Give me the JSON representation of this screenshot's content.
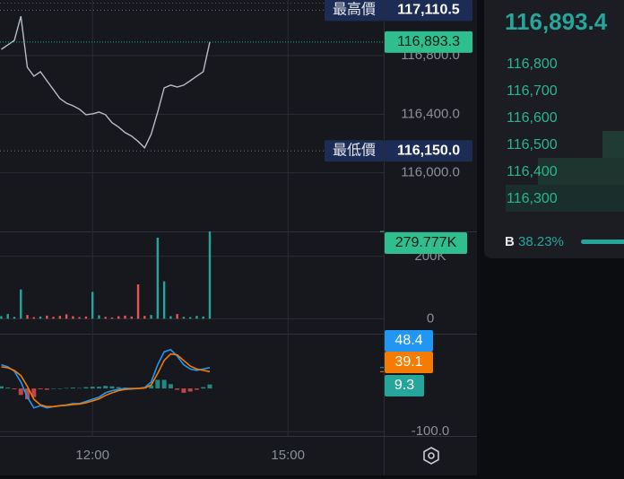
{
  "price_panel": {
    "type": "line",
    "color": "#b8bcc6",
    "x": [
      10.6,
      10.7,
      10.8,
      10.9,
      11.0,
      11.1,
      11.2,
      11.3,
      11.4,
      11.5,
      11.6,
      11.7,
      11.8,
      11.9,
      12.0,
      12.1,
      12.2,
      12.3,
      12.4,
      12.5,
      12.6,
      12.7,
      12.8,
      12.9,
      13.0,
      13.1,
      13.2,
      13.3,
      13.4,
      13.5,
      13.6,
      13.7,
      13.8
    ],
    "values": [
      116843,
      116873,
      116904,
      117069,
      116721,
      116660,
      116690,
      116629,
      116568,
      116507,
      116476,
      116458,
      116434,
      116397,
      116403,
      116415,
      116397,
      116342,
      116312,
      116275,
      116251,
      116214,
      116171,
      116263,
      116415,
      116580,
      116599,
      116586,
      116599,
      116629,
      116660,
      116690,
      116893.3
    ],
    "xlim": [
      10.58,
      16.47
    ],
    "xticks": [
      {
        "value": 12,
        "label": "12:00"
      },
      {
        "value": 15,
        "label": "15:00"
      }
    ],
    "ylim": [
      115600,
      117180
    ],
    "yticks": [
      {
        "value": 116800,
        "label": "116,800.0"
      },
      {
        "value": 116400,
        "label": "116,400.0"
      },
      {
        "value": 116000,
        "label": "116,000.0"
      }
    ],
    "high": {
      "label": "最高價",
      "value": 117110.5,
      "value_label": "117,110.5"
    },
    "low": {
      "label": "最低價",
      "value": 116150,
      "value_label": "116,150.0"
    },
    "last": {
      "value": 116893.3,
      "value_label": "116,893.3"
    }
  },
  "volume_panel": {
    "type": "bar",
    "up_color": "#26a69a",
    "down_color": "#ef5350",
    "values": [
      8000,
      15000,
      6000,
      94000,
      12000,
      5000,
      7000,
      10000,
      6000,
      9000,
      14000,
      8000,
      5000,
      7000,
      86000,
      11000,
      6000,
      4000,
      8000,
      10000,
      7000,
      110000,
      9000,
      12000,
      260000,
      120000,
      8000,
      15000,
      6000,
      5000,
      9000,
      7000,
      279777
    ],
    "ylim": [
      -48000,
      280000
    ],
    "yticks": [
      {
        "value": 200000,
        "label": "200K"
      },
      0
    ],
    "last": {
      "value": 279777,
      "value_label": "279.777K"
    }
  },
  "indicator_panel": {
    "ylim": [
      -110,
      127
    ],
    "yticks": [
      {
        "value": -100,
        "label": "-100.0"
      }
    ],
    "series": [
      {
        "color": "#2196f3",
        "values": [
          55,
          50,
          40,
          15,
          -20,
          -45,
          -40,
          -45,
          -42,
          -40,
          -38,
          -35,
          -35,
          -30,
          -25,
          -20,
          -10,
          -5,
          -2,
          0,
          0,
          0,
          2,
          15,
          55,
          85,
          90,
          75,
          55,
          45,
          42,
          45,
          48.4
        ]
      },
      {
        "color": "#f57c00",
        "values": [
          50,
          48,
          42,
          30,
          5,
          -25,
          -38,
          -42,
          -42,
          -40,
          -39,
          -37,
          -36,
          -33,
          -29,
          -24,
          -16,
          -10,
          -5,
          -2,
          -1,
          0,
          1,
          8,
          35,
          65,
          80,
          78,
          65,
          52,
          45,
          42,
          39.1
        ]
      }
    ],
    "hist": {
      "up_color": "#26a69a",
      "down_color": "#ef5350",
      "values": [
        5,
        2,
        -2,
        -15,
        -25,
        -20,
        -2,
        -3,
        0,
        0,
        1,
        2,
        1,
        3,
        4,
        4,
        6,
        5,
        3,
        2,
        1,
        0,
        1,
        7,
        20,
        20,
        10,
        -3,
        -10,
        -7,
        -3,
        3,
        9.3
      ]
    }
  },
  "order_book": {
    "price": {
      "value": 116893.4,
      "value_label": "116,893.4"
    },
    "levels": [
      {
        "value": 116800,
        "label": "116,800"
      },
      {
        "value": 116700,
        "label": "116,700"
      },
      {
        "value": 116600,
        "label": "116,600"
      },
      {
        "value": 116500,
        "label": "116,500"
      },
      {
        "value": 116400,
        "label": "116,400"
      },
      {
        "value": 116300,
        "label": "116,300"
      }
    ],
    "buy_ratio": {
      "label": "B",
      "value": 38.23,
      "value_label": "38.23%"
    }
  }
}
